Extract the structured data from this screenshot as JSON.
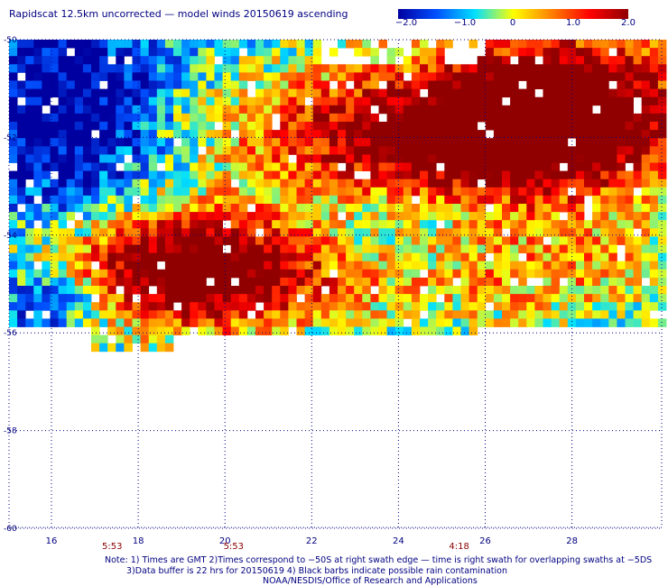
{
  "title": "Rapidscat 12.5km uncorrected — model winds 20150619 ascending",
  "colorbar": {
    "labels": [
      "−2.0",
      "−1.0",
      "0",
      "1.0",
      "2.0"
    ],
    "values": [
      -2.0,
      -1.0,
      0,
      1.0,
      2.0
    ],
    "colors": [
      "#0000a0",
      "#0050ff",
      "#00e0ff",
      "#ffff00",
      "#ff8000",
      "#ff0000",
      "#900000"
    ]
  },
  "map": {
    "lon_labels": [
      "16",
      "18",
      "20",
      "22",
      "24",
      "26",
      "28"
    ],
    "lon_values": [
      16,
      18,
      20,
      22,
      24,
      26,
      28
    ],
    "lat_labels": [
      "-50",
      "-52",
      "-54",
      "-56",
      "-58",
      "-60"
    ],
    "lat_values": [
      -50,
      -52,
      -54,
      -56,
      -58,
      -60
    ],
    "time_labels": [
      {
        "lon": 17.4,
        "text": "5:53"
      },
      {
        "lon": 20.2,
        "text": "5:53"
      },
      {
        "lon": 25.4,
        "text": "4:18"
      }
    ]
  },
  "notes": [
    "Note: 1) Times are GMT 2)Times correspond to −50S at right swath edge — time is right swath for overlapping swaths at −5DS",
    "3)Data buffer is 22 hrs for 20150619 4) Black barbs indicate possible rain contamination",
    "NOAA/NESDIS/Office of Research and Applications"
  ]
}
